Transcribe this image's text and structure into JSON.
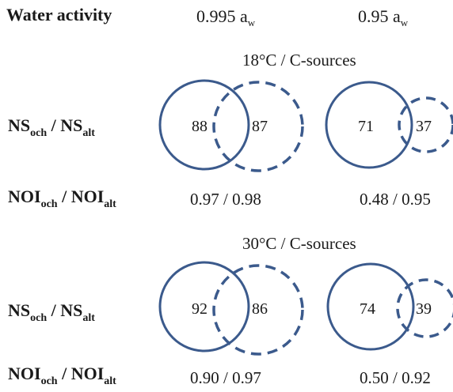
{
  "header": {
    "title": "Water activity",
    "col1": {
      "value": "0.995 a",
      "sub": "w"
    },
    "col2": {
      "value": "0.95 a",
      "sub": "w"
    }
  },
  "colors": {
    "circle": "#3b5a8c"
  },
  "blocks": [
    {
      "condition": "18°C / C-sources",
      "ns_label": {
        "a": "NS",
        "a_sub": "och",
        "sep": " / ",
        "b": "NS",
        "b_sub": "alt"
      },
      "noi_label": {
        "a": "NOI",
        "a_sub": "och",
        "sep": " / ",
        "b": "NOI",
        "b_sub": "alt"
      },
      "ns": [
        {
          "och": "88",
          "alt": "87"
        },
        {
          "och": "71",
          "alt": "37"
        }
      ],
      "noi": [
        "0.97 / 0.98",
        "0.48 / 0.95"
      ]
    },
    {
      "condition": "30°C / C-sources",
      "ns_label": {
        "a": "NS",
        "a_sub": "och",
        "sep": " / ",
        "b": "NS",
        "b_sub": "alt"
      },
      "noi_label": {
        "a": "NOI",
        "a_sub": "och",
        "sep": " / ",
        "b": "NOI",
        "b_sub": "alt"
      },
      "ns": [
        {
          "och": "92",
          "alt": "86"
        },
        {
          "och": "74",
          "alt": "39"
        }
      ],
      "noi": [
        "0.90 / 0.97",
        "0.50 / 0.92"
      ]
    }
  ]
}
